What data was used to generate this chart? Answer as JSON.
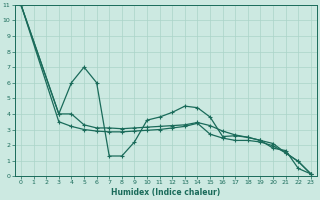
{
  "xlabel": "Humidex (Indice chaleur)",
  "ylabel": "",
  "bg_color": "#cce9e1",
  "line_color": "#1a6b5a",
  "grid_color": "#aad4c8",
  "xlim": [
    -0.5,
    23.5
  ],
  "ylim": [
    0,
    11
  ],
  "xticks": [
    0,
    1,
    2,
    3,
    4,
    5,
    6,
    7,
    8,
    9,
    10,
    11,
    12,
    13,
    14,
    15,
    16,
    17,
    18,
    19,
    20,
    21,
    22,
    23
  ],
  "yticks": [
    0,
    1,
    2,
    3,
    4,
    5,
    6,
    7,
    8,
    9,
    10,
    11
  ],
  "series": [
    {
      "x": [
        0,
        3,
        4,
        5,
        6,
        7,
        8,
        9,
        10,
        11,
        12,
        13,
        14,
        15,
        16,
        17,
        18,
        19,
        20,
        21,
        22,
        23
      ],
      "y": [
        11,
        4.0,
        4.0,
        3.3,
        3.1,
        3.1,
        3.05,
        3.1,
        3.15,
        3.2,
        3.25,
        3.3,
        3.45,
        3.25,
        2.9,
        2.65,
        2.5,
        2.3,
        2.1,
        1.5,
        0.95,
        0.15
      ]
    },
    {
      "x": [
        0,
        3,
        4,
        5,
        6,
        7,
        8,
        9,
        10,
        11,
        12,
        13,
        14,
        15,
        16,
        17,
        18,
        19,
        20,
        21,
        22,
        23
      ],
      "y": [
        11,
        4.0,
        6.0,
        7.0,
        6.0,
        1.3,
        1.3,
        2.2,
        3.6,
        3.8,
        4.1,
        4.5,
        4.4,
        3.8,
        2.55,
        2.6,
        2.5,
        2.3,
        1.8,
        1.65,
        0.5,
        0.15
      ]
    },
    {
      "x": [
        0,
        3,
        4,
        5,
        6,
        7,
        8,
        9,
        10,
        11,
        12,
        13,
        14,
        15,
        16,
        17,
        18,
        19,
        20,
        21,
        22,
        23
      ],
      "y": [
        11,
        3.5,
        3.2,
        3.0,
        2.9,
        2.85,
        2.85,
        2.9,
        2.95,
        3.0,
        3.1,
        3.2,
        3.4,
        2.7,
        2.45,
        2.3,
        2.3,
        2.2,
        1.95,
        1.5,
        0.95,
        0.15
      ]
    }
  ]
}
